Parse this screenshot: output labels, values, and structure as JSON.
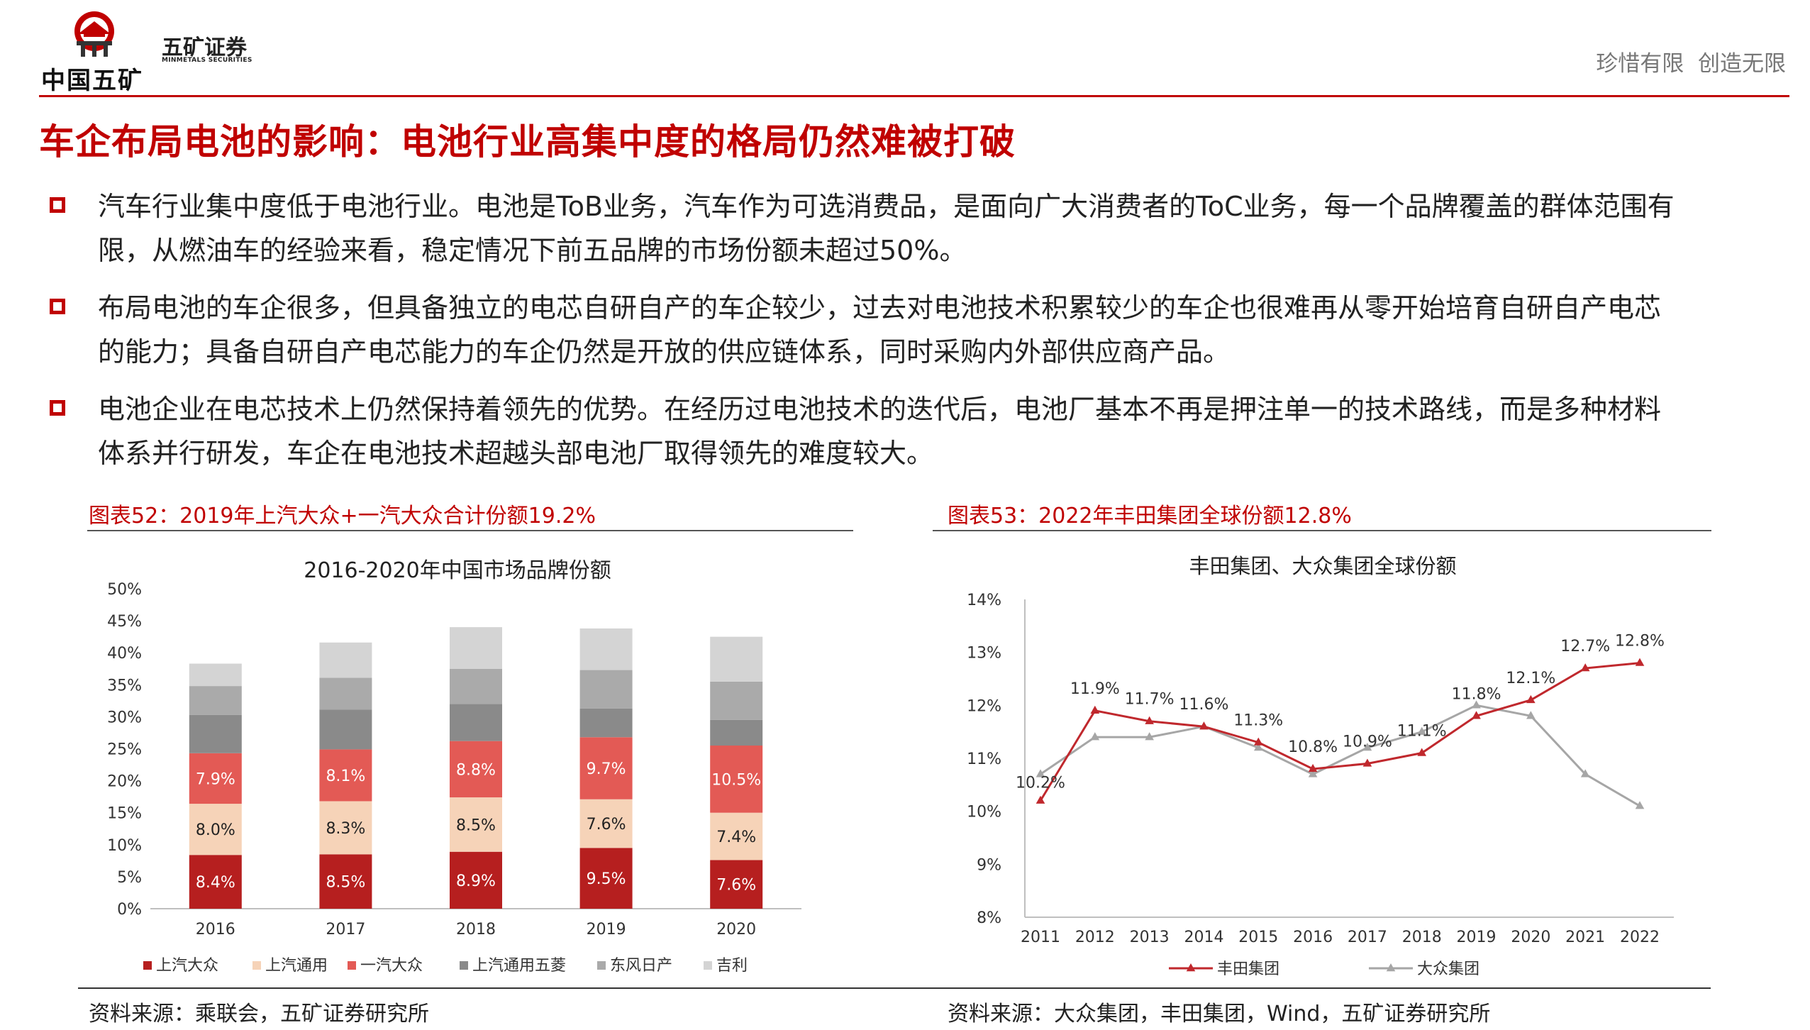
{
  "header": {
    "logo_cn": "中国五矿",
    "brand_cn": "五矿证券",
    "brand_en": "MINMETALS SECURITIES",
    "slogan": "珍惜有限  创造无限"
  },
  "title": "车企布局电池的影响：电池行业高集中度的格局仍然难被打破",
  "bullets": [
    {
      "line1": "汽车行业集中度低于电池行业。电池是ToB业务，汽车作为可选消费品，是面向广大消费者的ToC业务，每一个品牌覆盖的群体范围有",
      "line2": "限，从燃油车的经验来看，稳定情况下前五品牌的市场份额未超过50%。"
    },
    {
      "line1": "布局电池的车企很多，但具备独立的电芯自研自产的车企较少，过去对电池技术积累较少的车企也很难再从零开始培育自研自产电芯",
      "line2": "的能力；具备自研自产电芯能力的车企仍然是开放的供应链体系，同时采购内外部供应商产品。"
    },
    {
      "line1": "电池企业在电芯技术上仍然保持着领先的优势。在经历过电池技术的迭代后，电池厂基本不再是押注单一的技术路线，而是多种材料",
      "line2": "体系并行研发，车企在电池技术超越头部电池厂取得领先的难度较大。"
    }
  ],
  "left_caption": "图表52：2019年上汽大众+一汽大众合计份额19.2%",
  "right_caption": "图表53：2022年丰田集团全球份额12.8%",
  "left_source": "资料来源：乘联会，五矿证券研究所",
  "right_source": "资料来源：大众集团，丰田集团，Wind，五矿证券研究所",
  "colors": {
    "accent": "#c00000",
    "toyota": "#c0282d",
    "vw": "#a6a6a6"
  },
  "chart_data": [
    {
      "type": "bar",
      "stacked": true,
      "title": "2016-2020年中国市场品牌份额",
      "categories": [
        "2016",
        "2017",
        "2018",
        "2019",
        "2020"
      ],
      "ylim": [
        0,
        50
      ],
      "yticks": [
        "0%",
        "5%",
        "10%",
        "15%",
        "20%",
        "25%",
        "30%",
        "35%",
        "40%",
        "45%",
        "50%"
      ],
      "legend_position": "bottom",
      "series": [
        {
          "name": "上汽大众",
          "color": "#b61f1f",
          "values": [
            8.4,
            8.5,
            8.9,
            9.5,
            7.6
          ],
          "labels": [
            "8.4%",
            "8.5%",
            "8.9%",
            "9.5%",
            "7.6%"
          ]
        },
        {
          "name": "上汽通用",
          "color": "#f6d3b8",
          "values": [
            8.0,
            8.3,
            8.5,
            7.6,
            7.4
          ],
          "labels": [
            "8.0%",
            "8.3%",
            "8.5%",
            "7.6%",
            "7.4%"
          ]
        },
        {
          "name": "一汽大众",
          "color": "#e35a55",
          "values": [
            7.9,
            8.1,
            8.8,
            9.7,
            10.5
          ],
          "labels": [
            "7.9%",
            "8.1%",
            "8.8%",
            "9.7%",
            "10.5%"
          ]
        },
        {
          "name": "上汽通用五菱",
          "color": "#8a8a8a",
          "values": [
            6.0,
            6.2,
            5.8,
            4.5,
            4.0
          ]
        },
        {
          "name": "东风日产",
          "color": "#aaaaaa",
          "values": [
            4.5,
            5.0,
            5.5,
            6.0,
            6.0
          ]
        },
        {
          "name": "吉利",
          "color": "#d4d4d4",
          "values": [
            3.5,
            5.5,
            6.5,
            6.5,
            7.0
          ]
        }
      ]
    },
    {
      "type": "line",
      "title": "丰田集团、大众集团全球份额",
      "x": [
        "2011",
        "2012",
        "2013",
        "2014",
        "2015",
        "2016",
        "2017",
        "2018",
        "2019",
        "2020",
        "2021",
        "2022"
      ],
      "ylim": [
        8,
        14
      ],
      "yticks": [
        "8%",
        "9%",
        "10%",
        "11%",
        "12%",
        "13%",
        "14%"
      ],
      "legend_position": "bottom",
      "series": [
        {
          "name": "丰田集团",
          "color": "#c0282d",
          "marker": "triangle",
          "values": [
            10.2,
            11.9,
            11.7,
            11.6,
            11.3,
            10.8,
            10.9,
            11.1,
            11.8,
            12.1,
            12.7,
            12.8
          ],
          "labels": [
            "10.2%",
            "11.9%",
            "11.7%",
            "11.6%",
            "11.3%",
            "10.8%",
            "10.9%",
            "11.1%",
            "11.8%",
            "12.1%",
            "12.7%",
            "12.8%"
          ]
        },
        {
          "name": "大众集团",
          "color": "#a6a6a6",
          "marker": "triangle",
          "values": [
            10.7,
            11.4,
            11.4,
            11.6,
            11.2,
            10.7,
            11.2,
            11.5,
            12.0,
            11.8,
            10.7,
            10.1
          ]
        }
      ]
    }
  ]
}
